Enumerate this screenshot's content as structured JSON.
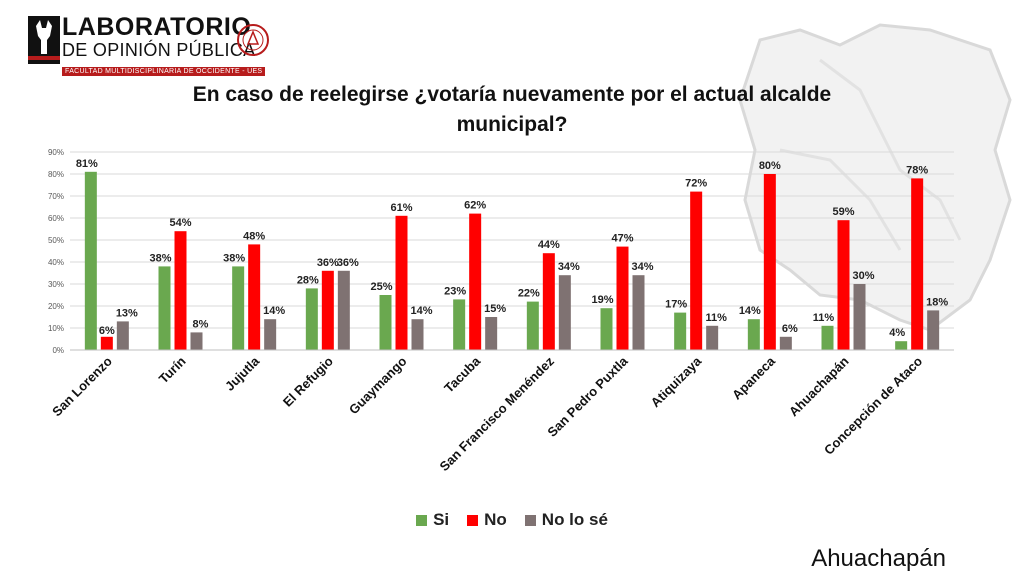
{
  "logo": {
    "line1": "LABORATORIO",
    "line2": "DE OPINIÓN PÚBLICA",
    "line3": "FACULTAD MULTIDISCIPLINARIA DE OCCIDENTE - UES",
    "icon": "deer-head-icon",
    "seal_icon": "university-seal-icon"
  },
  "place_label": "Ahuachapán",
  "colors": {
    "si": "#6aa84f",
    "no": "#ff0000",
    "nose": "#7f7272"
  },
  "chart_data": {
    "type": "bar",
    "title": "En caso de reelegirse ¿votaría nuevamente por el actual alcalde municipal?",
    "xlabel": "",
    "ylabel": "",
    "ylim": [
      0,
      90
    ],
    "yticks": [
      "0%",
      "10%",
      "20%",
      "30%",
      "40%",
      "50%",
      "60%",
      "70%",
      "80%",
      "90%"
    ],
    "grid": true,
    "legend_position": "bottom",
    "categories": [
      "San Lorenzo",
      "Turín",
      "Jujutla",
      "El Refugio",
      "Guaymango",
      "Tacuba",
      "San Francisco Menéndez",
      "San Pedro Puxtla",
      "Atiquizaya",
      "Apaneca",
      "Ahuachapán",
      "Concepción de Ataco"
    ],
    "series": [
      {
        "name": "Si",
        "values": [
          81,
          38,
          38,
          28,
          25,
          23,
          22,
          19,
          17,
          14,
          11,
          4
        ],
        "labels": [
          "81%",
          "38%",
          "38%",
          "28%",
          "25%",
          "23%",
          "22%",
          "19%",
          "17%",
          "14%",
          "11%",
          "4%"
        ]
      },
      {
        "name": "No",
        "values": [
          6,
          54,
          48,
          36,
          61,
          62,
          44,
          47,
          72,
          80,
          59,
          78
        ],
        "labels": [
          "6%",
          "54%",
          "48%",
          "36%",
          "61%",
          "62%",
          "44%",
          "47%",
          "72%",
          "80%",
          "59%",
          "78%"
        ]
      },
      {
        "name": "No lo sé",
        "values": [
          13,
          8,
          14,
          36,
          14,
          15,
          34,
          34,
          11,
          6,
          30,
          18
        ],
        "labels": [
          "13%",
          "8%",
          "14%",
          "36%",
          "14%",
          "15%",
          "34%",
          "34%",
          "11%",
          "6%",
          "30%",
          "18%"
        ]
      }
    ]
  }
}
